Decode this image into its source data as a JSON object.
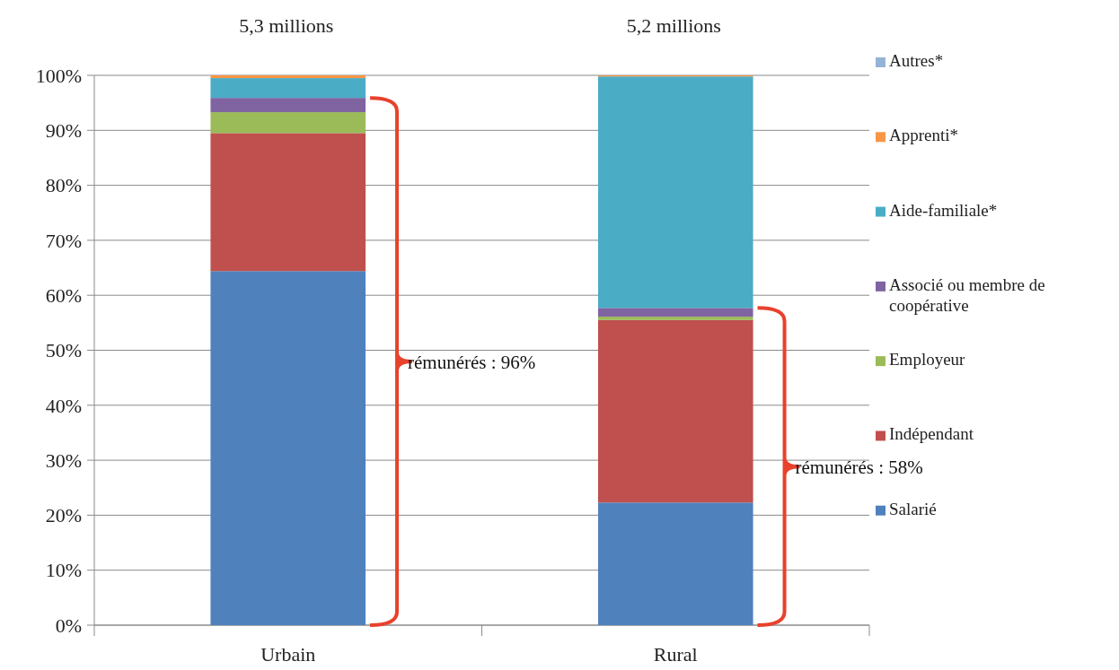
{
  "chart_data": {
    "type": "bar",
    "stacked": true,
    "categories": [
      "Urbain",
      "Rural"
    ],
    "series": [
      {
        "name": "Salarié",
        "color": "#4f81bd",
        "values": [
          64.4,
          22.3
        ]
      },
      {
        "name": "Indépendant",
        "color": "#c0504d",
        "values": [
          25.1,
          33.2
        ]
      },
      {
        "name": "Employeur",
        "color": "#9bbb59",
        "values": [
          3.8,
          0.6
        ]
      },
      {
        "name": "Associé ou membre de coopérative",
        "color": "#8064a2",
        "values": [
          2.6,
          1.6
        ]
      },
      {
        "name": "Aide-familiale*",
        "color": "#4bacc6",
        "values": [
          3.6,
          42.1
        ]
      },
      {
        "name": "Apprenti*",
        "color": "#f79646",
        "values": [
          0.5,
          0.2
        ]
      },
      {
        "name": "Autres*",
        "color": "#95b3d7",
        "values": [
          0,
          0
        ]
      }
    ],
    "ylim": [
      0,
      100
    ],
    "yticks": [
      {
        "value": 0,
        "label": "0%"
      },
      {
        "value": 10,
        "label": "10%"
      },
      {
        "value": 20,
        "label": "20%"
      },
      {
        "value": 30,
        "label": "30%"
      },
      {
        "value": 40,
        "label": "40%"
      },
      {
        "value": 50,
        "label": "50%"
      },
      {
        "value": 60,
        "label": "60%"
      },
      {
        "value": 70,
        "label": "70%"
      },
      {
        "value": 80,
        "label": "80%"
      },
      {
        "value": 90,
        "label": "90%"
      },
      {
        "value": 100,
        "label": "100%"
      }
    ],
    "grid": "y",
    "legend": "right",
    "annotations": [
      "5,3 millions",
      "5,2 millions",
      "rémunérés : 96%",
      "rémunérés : 58%"
    ]
  }
}
